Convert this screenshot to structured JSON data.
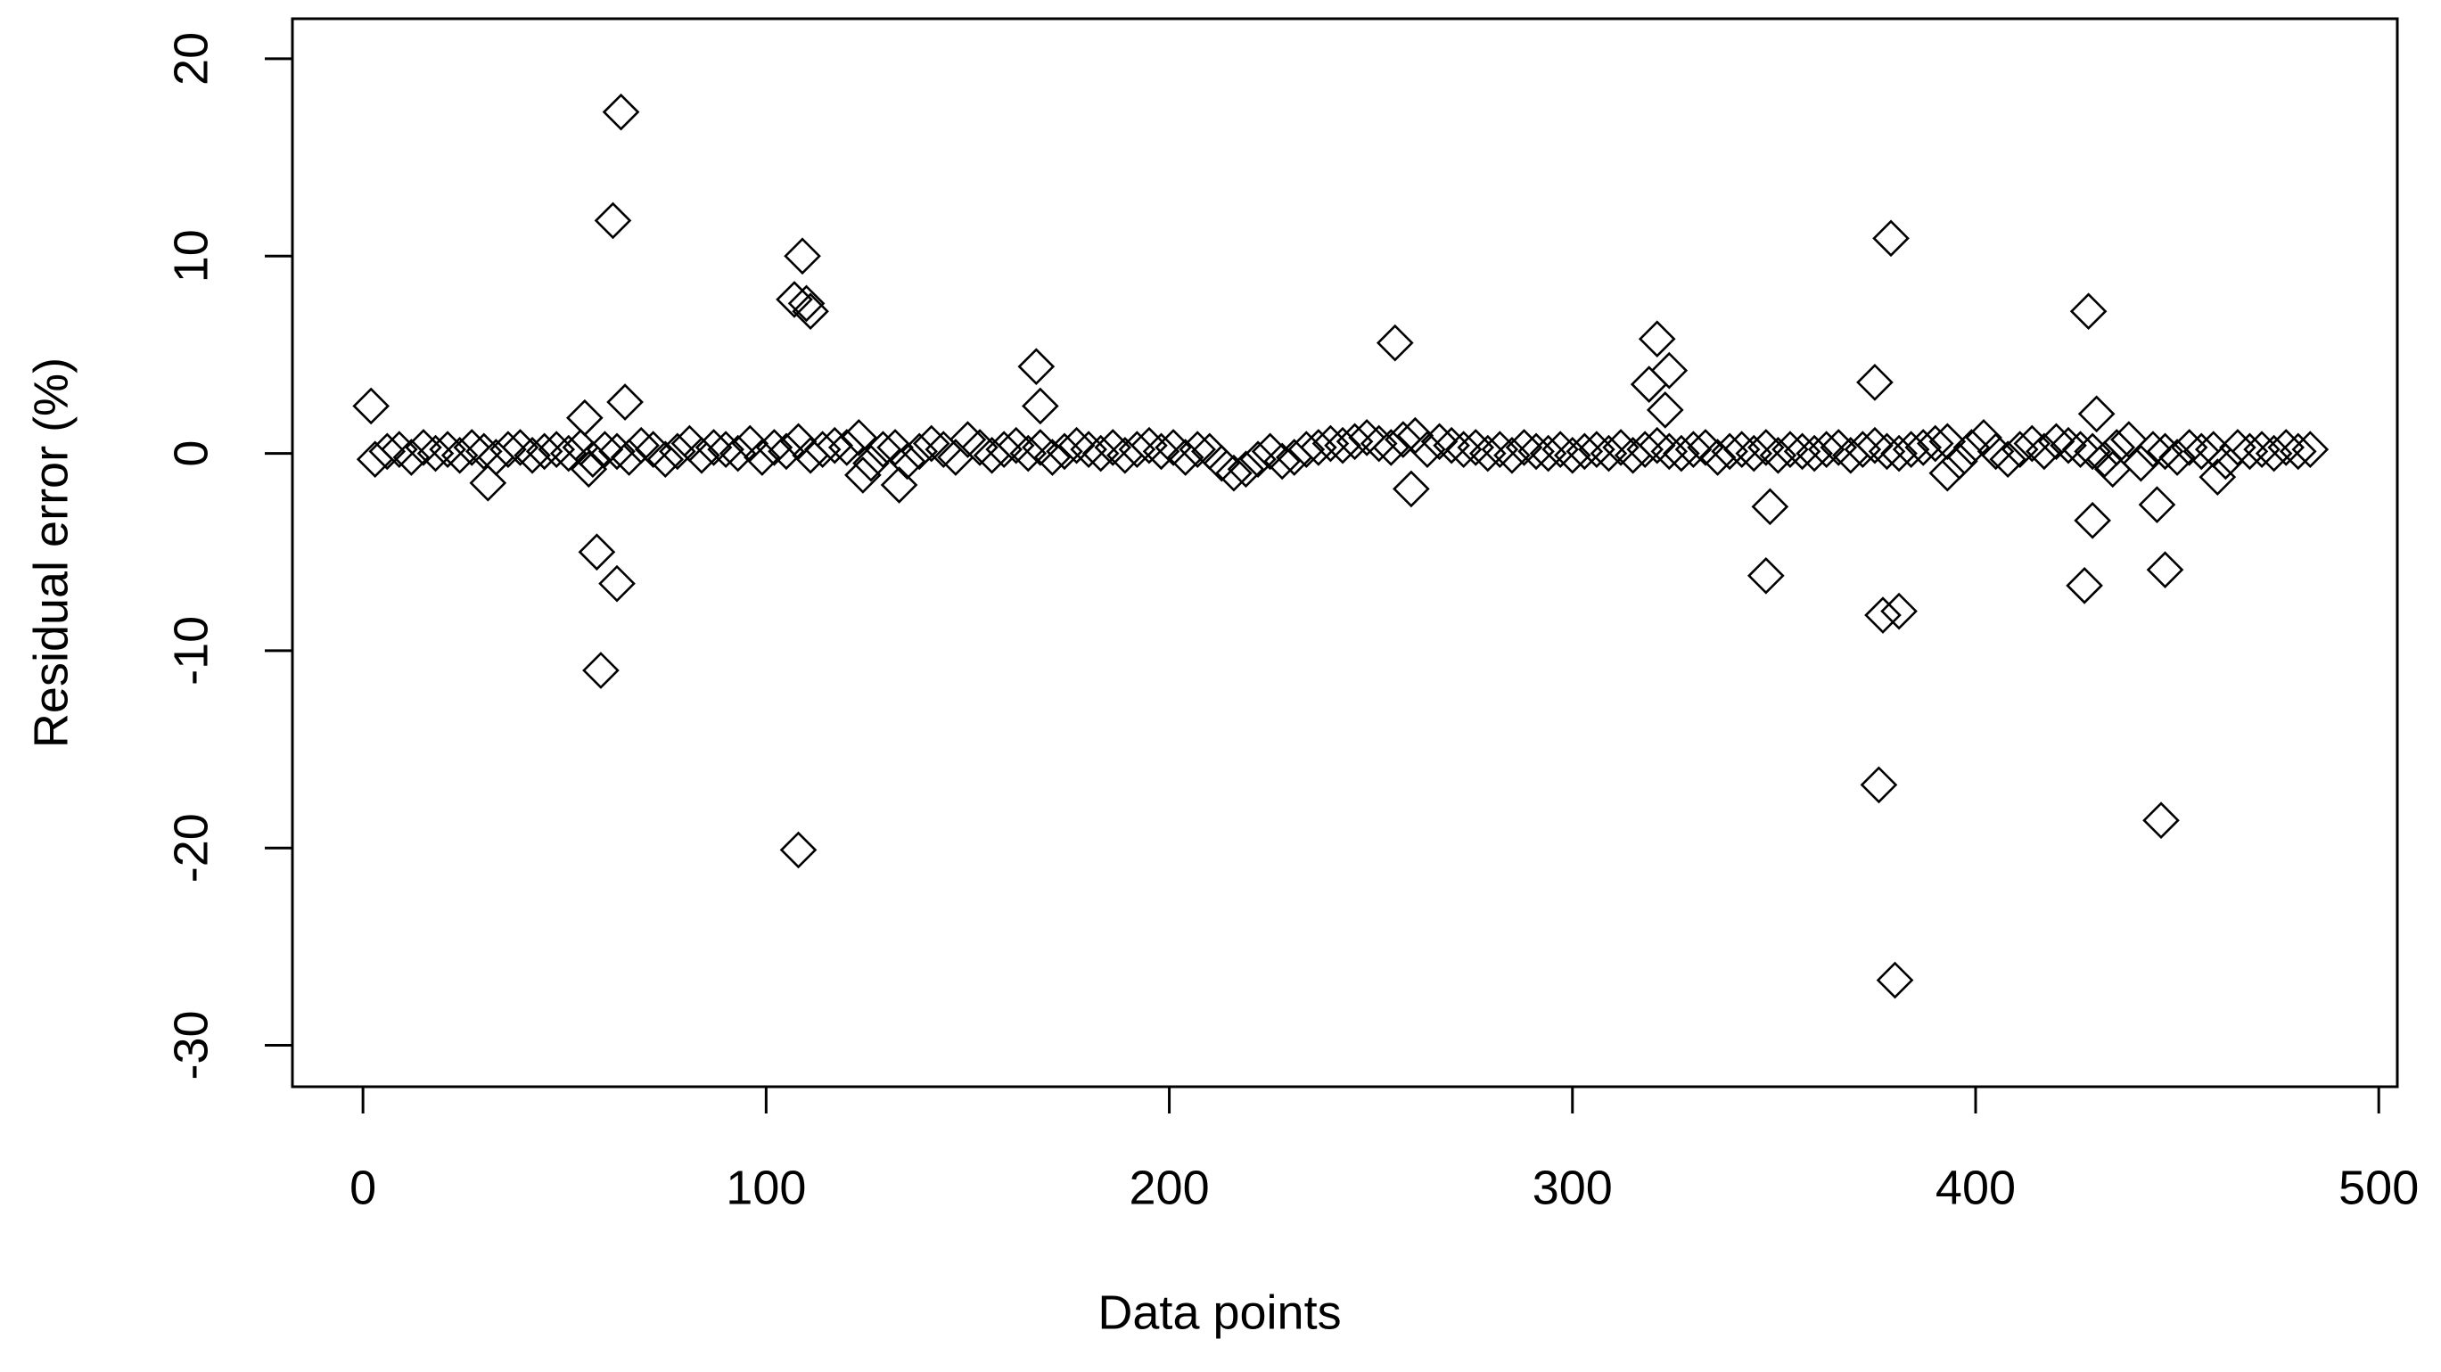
{
  "chart_data": {
    "type": "scatter",
    "xlabel": "Data points",
    "ylabel": "Residual error (%)",
    "color": "#000000",
    "marker": "diamond",
    "xlim": [
      -17.5,
      504.6
    ],
    "ylim": [
      -32.1,
      22.03
    ],
    "xticks": [
      0,
      100,
      200,
      300,
      400,
      500
    ],
    "yticks": [
      -30,
      -20,
      -10,
      0,
      10,
      20
    ],
    "x": [
      3,
      6,
      9,
      12,
      15,
      18,
      21,
      24,
      27,
      30,
      33,
      36,
      39,
      42,
      45,
      48,
      51,
      54,
      57,
      60,
      63,
      66,
      69,
      72,
      75,
      78,
      81,
      84,
      87,
      90,
      93,
      96,
      99,
      102,
      105,
      108,
      111,
      114,
      117,
      120,
      123,
      126,
      129,
      132,
      135,
      138,
      141,
      144,
      147,
      150,
      153,
      156,
      159,
      162,
      165,
      168,
      171,
      174,
      177,
      180,
      183,
      186,
      189,
      192,
      195,
      198,
      201,
      204,
      207,
      210,
      213,
      216,
      219,
      222,
      225,
      228,
      231,
      234,
      237,
      240,
      243,
      246,
      249,
      252,
      255,
      258,
      261,
      264,
      267,
      270,
      273,
      276,
      279,
      282,
      285,
      288,
      291,
      294,
      297,
      300,
      303,
      306,
      309,
      312,
      315,
      318,
      321,
      324,
      327,
      330,
      333,
      336,
      339,
      342,
      345,
      348,
      351,
      354,
      357,
      360,
      363,
      366,
      369,
      372,
      375,
      378,
      381,
      384,
      387,
      390,
      393,
      396,
      399,
      402,
      405,
      408,
      411,
      414,
      417,
      420,
      423,
      426,
      429,
      432,
      435,
      438,
      441,
      444,
      447,
      450,
      453,
      456,
      459,
      462,
      465,
      468,
      471,
      474,
      477,
      480,
      483,
      2,
      31,
      55,
      56,
      58,
      59,
      62,
      63,
      64,
      65,
      107,
      108,
      109,
      110,
      111,
      124,
      133,
      167,
      168,
      256,
      260,
      319,
      321,
      323,
      324,
      348,
      349,
      375,
      376,
      377,
      379,
      380,
      381,
      393,
      427,
      428,
      429,
      430,
      434,
      445,
      446,
      447,
      460
    ],
    "values": [
      -0.3,
      0.1,
      0.2,
      -0.2,
      0.3,
      0,
      0.2,
      -0.1,
      0.3,
      0.1,
      -0.2,
      0.2,
      0.3,
      -0.1,
      0.1,
      0.2,
      0,
      0.3,
      -0.3,
      0.2,
      0.1,
      -0.2,
      0.4,
      0.2,
      -0.3,
      0.1,
      0.5,
      -0.1,
      0.3,
      0.2,
      0,
      0.5,
      -0.2,
      0.3,
      0.1,
      0.6,
      -0.1,
      0.2,
      0.4,
      0.3,
      0.8,
      -0.5,
      0.2,
      0.3,
      -0.4,
      0.1,
      0.5,
      0.2,
      -0.2,
      0.7,
      0.3,
      -0.1,
      0.2,
      0.4,
      0,
      0.3,
      -0.2,
      0.1,
      0.4,
      0.2,
      0,
      0.3,
      -0.1,
      0.2,
      0.4,
      0.1,
      0.3,
      -0.2,
      0.2,
      0.1,
      -0.5,
      -1,
      -0.8,
      -0.3,
      0.1,
      -0.4,
      -0.2,
      0.2,
      0.3,
      0.5,
      0.4,
      0.6,
      0.8,
      0.5,
      0.3,
      0.7,
      0.9,
      0.2,
      0.6,
      0.4,
      0.2,
      0.3,
      0,
      0.2,
      -0.1,
      0.3,
      0.1,
      0,
      0.2,
      -0.1,
      0.1,
      0.2,
      0,
      0.3,
      -0.1,
      0.2,
      0.4,
      0.1,
      0,
      0.2,
      0.3,
      -0.2,
      0.1,
      0.2,
      0,
      0.3,
      -0.1,
      0.2,
      0.1,
      0,
      0.2,
      0.3,
      -0.1,
      0.2,
      0.4,
      0.1,
      0,
      0.2,
      0.3,
      0.5,
      0.6,
      -0.4,
      0.3,
      0.8,
      0.1,
      -0.3,
      0.2,
      0.5,
      0.1,
      0.6,
      0.4,
      0.2,
      0.1,
      -0.3,
      0.3,
      0.7,
      -0.5,
      0.2,
      0.1,
      -0.2,
      0.3,
      0.1,
      0.2,
      -0.4,
      0.3,
      0.1,
      0.2,
      0,
      0.3,
      0.1,
      0.2,
      2.4,
      -1.5,
      1.8,
      -0.8,
      -5,
      -11,
      11.8,
      -6.6,
      17.3,
      2.6,
      7.8,
      -20.1,
      10,
      7.6,
      7.2,
      -1.1,
      -1.6,
      4.4,
      2.4,
      5.6,
      -1.8,
      3.5,
      5.8,
      2.2,
      4.2,
      -6.2,
      -2.7,
      3.6,
      -16.8,
      -8.2,
      10.9,
      -26.7,
      -8,
      -1,
      -6.7,
      7.2,
      -3.4,
      2,
      -0.8,
      -2.6,
      -18.6,
      -5.9,
      -1.2
    ]
  }
}
